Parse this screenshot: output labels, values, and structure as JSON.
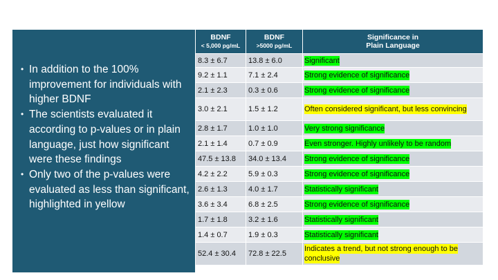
{
  "bullets": [
    "In addition to the 100% improvement for individuals with higher BDNF",
    "The scientists evaluated it according to p-values or in plain language, just how significant were these findings",
    "Only two of the p-values were evaluated as less than significant, highlighted in yellow"
  ],
  "table": {
    "headers": [
      {
        "line1": "BDNF",
        "line2": "< 5,000 pg/mL"
      },
      {
        "line1": "BDNF",
        "line2": ">5000 pg/mL"
      },
      {
        "line1": "Significance in",
        "line2": "Plain Language"
      }
    ],
    "rows": [
      {
        "low": "8.3 ± 6.7",
        "high": "13.8 ± 6.0",
        "significance": "Significant",
        "highlight": "green"
      },
      {
        "low": "9.2 ± 1.1",
        "high": "7.1 ± 2.4",
        "significance": "Strong evidence of significance",
        "highlight": "green"
      },
      {
        "low": "2.1 ± 2.3",
        "high": "0.3 ± 0.6",
        "significance": "Strong evidence of significance",
        "highlight": "green"
      },
      {
        "low": "3.0 ± 2.1",
        "high": "1.5 ± 1.2",
        "significance": "Often considered significant, but less convincing",
        "highlight": "yellow"
      },
      {
        "low": "2.8 ± 1.7",
        "high": "1.0 ± 1.0",
        "significance": "Very strong significance",
        "highlight": "green"
      },
      {
        "low": "2.1 ± 1.4",
        "high": "0.7 ± 0.9",
        "significance": "Even stronger. Highly unlikely to be random",
        "highlight": "green"
      },
      {
        "low": "47.5 ± 13.8",
        "high": "34.0 ± 13.4",
        "significance": "Strong evidence of significance",
        "highlight": "green"
      },
      {
        "low": "4.2 ± 2.2",
        "high": "5.9 ± 0.3",
        "significance": "Strong evidence of significance",
        "highlight": "green"
      },
      {
        "low": "2.6 ± 1.3",
        "high": "4.0 ± 1.7",
        "significance": "Statistically significant",
        "highlight": "green"
      },
      {
        "low": "3.6 ± 3.4",
        "high": "6.8 ± 2.5",
        "significance": "Strong evidence of significance",
        "highlight": "green"
      },
      {
        "low": "1.7 ± 1.8",
        "high": "3.2 ± 1.6",
        "significance": "Statistically significant",
        "highlight": "green"
      },
      {
        "low": "1.4 ± 0.7",
        "high": "1.9 ± 0.3",
        "significance": "Statistically significant",
        "highlight": "green"
      },
      {
        "low": "52.4 ± 30.4",
        "high": "72.8 ± 22.5",
        "significance": "Indicates a trend, but not strong enough to be conclusive",
        "highlight": "yellow"
      }
    ]
  },
  "colors": {
    "panel": "#1f5a74",
    "header": "#1f5a74",
    "row_dark": "#d2d7de",
    "row_light": "#e9ebef",
    "highlight_green": "#00ff00",
    "highlight_yellow": "#ffff00"
  }
}
